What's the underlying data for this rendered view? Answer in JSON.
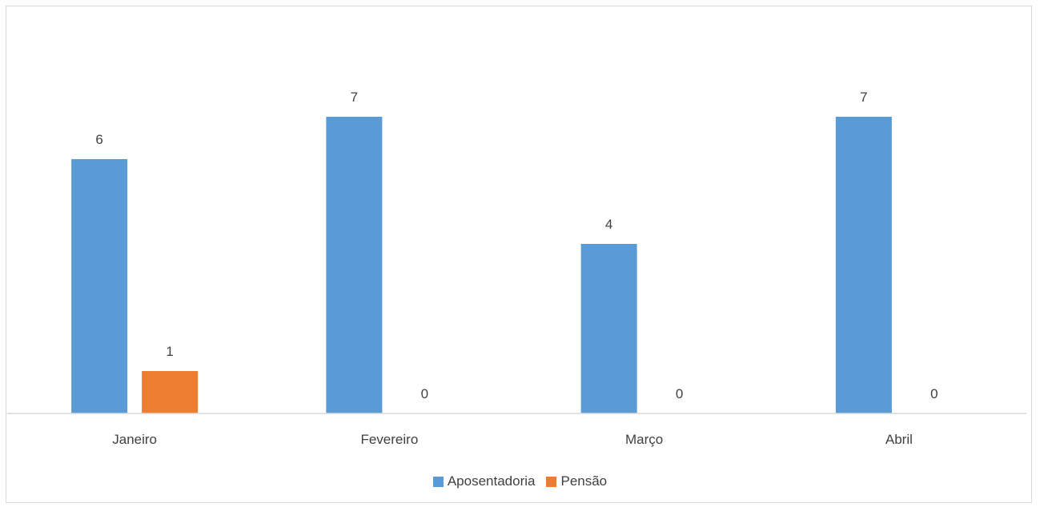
{
  "chart_data": {
    "type": "bar",
    "title": "",
    "xlabel": "",
    "ylabel": "",
    "categories": [
      "Janeiro",
      "Fevereiro",
      "Março",
      "Abril"
    ],
    "series": [
      {
        "name": "Aposentadoria",
        "color": "#5b9bd5",
        "values": [
          6,
          7,
          4,
          7
        ]
      },
      {
        "name": "Pensão",
        "color": "#ed7d31",
        "values": [
          1,
          0,
          0,
          0
        ]
      }
    ],
    "ylim": [
      0,
      8
    ],
    "grid": false,
    "data_labels": true,
    "legend_position": "bottom"
  }
}
